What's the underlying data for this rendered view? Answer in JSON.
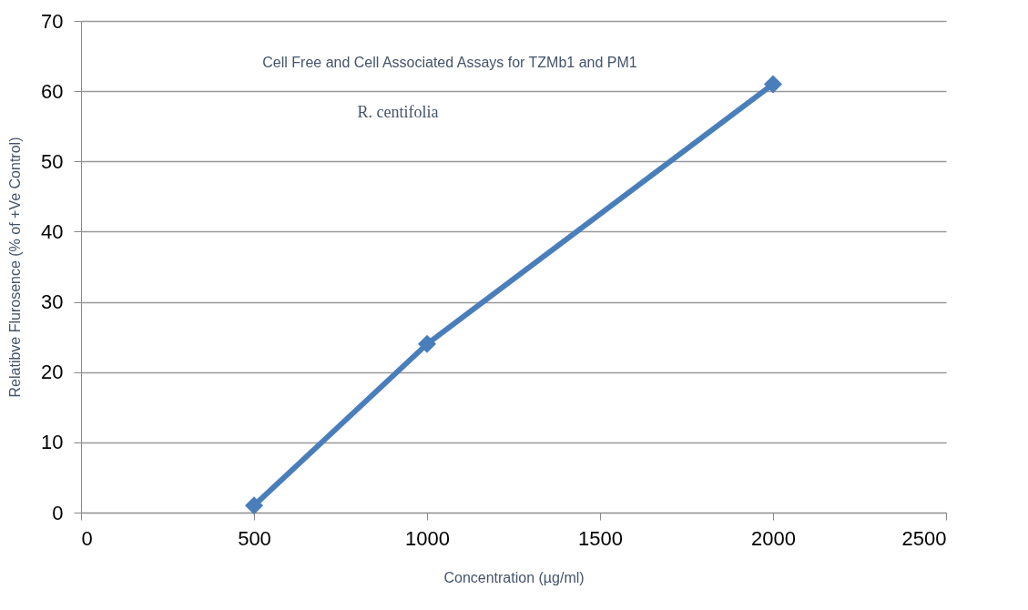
{
  "chart_data": {
    "type": "line",
    "title": "Cell Free and Cell Associated Assays for TZMb1 and PM1",
    "subtitle": "R. centifolia",
    "xlabel": "Concentration (µg/ml)",
    "ylabel": "Relatibve Flurosence (% of +Ve Control)",
    "x": [
      500,
      1000,
      2000
    ],
    "series": [
      {
        "color": "#4a7ebb",
        "values": [
          1,
          24,
          61
        ]
      }
    ],
    "xlim": [
      0,
      2500
    ],
    "xticks": [
      0,
      500,
      1000,
      1500,
      2000,
      2500
    ],
    "ylim": [
      0,
      70
    ],
    "yticks": [
      0,
      10,
      20,
      30,
      40,
      50,
      60,
      70
    ],
    "grid": "y",
    "marker": "diamond",
    "line_style": "solid"
  }
}
